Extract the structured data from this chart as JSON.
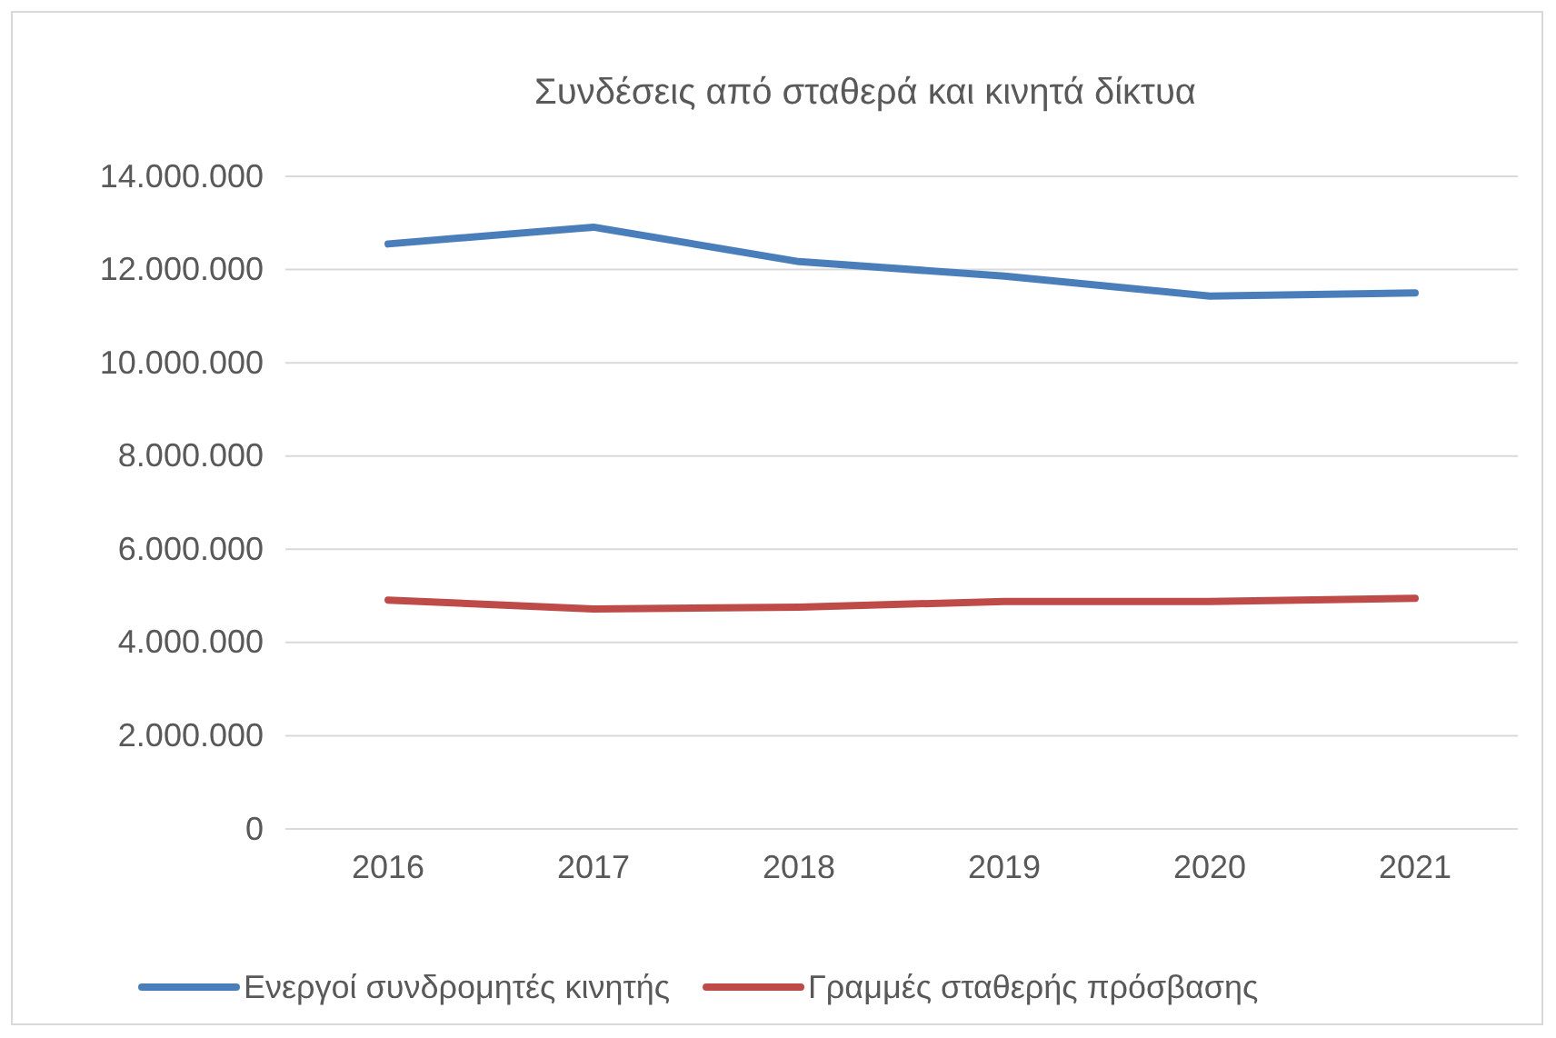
{
  "chart_data": {
    "type": "line",
    "title": "Συνδέσεις από σταθερά και κινητά δίκτυα",
    "categories": [
      "2016",
      "2017",
      "2018",
      "2019",
      "2020",
      "2021"
    ],
    "series": [
      {
        "name": "Ενεργοί συνδρομητές κινητής",
        "color": "#4a7ebb",
        "values": [
          12550000,
          12910000,
          12170000,
          11860000,
          11430000,
          11500000
        ]
      },
      {
        "name": "Γραμμές σταθερής πρόσβασης",
        "color": "#be4b48",
        "values": [
          4910000,
          4720000,
          4760000,
          4880000,
          4880000,
          4950000
        ]
      }
    ],
    "ylim": [
      0,
      14000000
    ],
    "yticks": [
      0,
      {
        "value": 2000000,
        "label": "2.000.000"
      },
      {
        "value": 4000000,
        "label": "4.000.000"
      },
      {
        "value": 6000000,
        "label": "6.000.000"
      },
      {
        "value": 8000000,
        "label": "8.000.000"
      },
      {
        "value": 10000000,
        "label": "10.000.000"
      },
      {
        "value": 12000000,
        "label": "12.000.000"
      },
      {
        "value": 14000000,
        "label": "14.000.000"
      }
    ],
    "grid": "y",
    "legend": "bottom",
    "marker": "none",
    "line_style": "solid"
  }
}
